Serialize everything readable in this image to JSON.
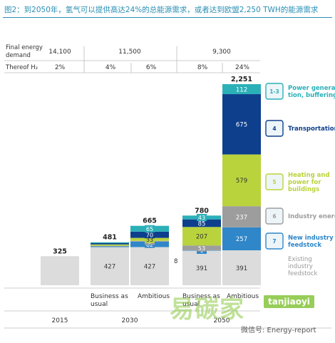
{
  "title": "图2：到2050年，氢气可以提供高达24%的总能源需求，或者达到欧盟2,250 TWH的能源需求",
  "chart_data": {
    "type": "bar",
    "stacked": true,
    "header_rows": [
      {
        "label": "Final energy demand",
        "values": [
          "14,100",
          "11,500",
          "9,300"
        ]
      },
      {
        "label": "Thereof H₂",
        "values": [
          "2%",
          "4%",
          "6%",
          "8%",
          "24%"
        ]
      }
    ],
    "bars": [
      {
        "category": "",
        "group": "2015",
        "total": "325",
        "segments": [
          {
            "name": "Existing industry feedstock",
            "value": 325,
            "label": ""
          }
        ]
      },
      {
        "category": "Business as usual",
        "group": "2030",
        "total": "481",
        "segments": [
          {
            "name": "Existing industry feedstock",
            "value": 427,
            "label": "427"
          },
          {
            "name": "New industry feedstock",
            "value": 10,
            "label": ""
          },
          {
            "name": "Industry energy",
            "value": 5,
            "label": ""
          },
          {
            "name": "Heating and power for buildings",
            "value": 15,
            "label": ""
          },
          {
            "name": "Transportation",
            "value": 14,
            "label": ""
          },
          {
            "name": "Power generation, buffering",
            "value": 10,
            "label": ""
          }
        ]
      },
      {
        "category": "Ambitious",
        "group": "2030",
        "total": "665",
        "segments": [
          {
            "name": "Existing industry feedstock",
            "value": 427,
            "label": "427"
          },
          {
            "name": "New industry feedstock",
            "value": 62,
            "label": "62"
          },
          {
            "name": "Industry energy",
            "value": 8,
            "label": "8"
          },
          {
            "name": "Heating and power for buildings",
            "value": 33,
            "label": "33"
          },
          {
            "name": "Transportation",
            "value": 70,
            "label": "70"
          },
          {
            "name": "Power generation, buffering",
            "value": 65,
            "label": "65"
          }
        ]
      },
      {
        "category": "Business as usual",
        "group": "2050",
        "total": "780",
        "segments": [
          {
            "name": "Existing industry feedstock",
            "value": 391,
            "label": "391"
          },
          {
            "name": "New industry feedstock",
            "value": 1,
            "label": "1"
          },
          {
            "name": "Industry energy",
            "value": 53,
            "label": "53"
          },
          {
            "name": "Heating and power for buildings",
            "value": 207,
            "label": "207"
          },
          {
            "name": "Transportation",
            "value": 85,
            "label": "85"
          },
          {
            "name": "Power generation, buffering",
            "value": 43,
            "label": "43"
          }
        ]
      },
      {
        "category": "Ambitious",
        "group": "2050",
        "total": "2,251",
        "segments": [
          {
            "name": "Existing industry feedstock",
            "value": 391,
            "label": "391"
          },
          {
            "name": "New industry feedstock",
            "value": 257,
            "label": "257"
          },
          {
            "name": "Industry energy",
            "value": 237,
            "label": "237"
          },
          {
            "name": "Heating and power for buildings",
            "value": 579,
            "label": "579"
          },
          {
            "name": "Transportation",
            "value": 675,
            "label": "675"
          },
          {
            "name": "Power generation, buffering",
            "value": 112,
            "label": "112"
          }
        ]
      }
    ],
    "groups": [
      "2015",
      "2030",
      "2050"
    ],
    "legend": [
      {
        "icon": "1-3",
        "label": "Power genera-\ntion, buffering",
        "color": "#2bb0b8"
      },
      {
        "icon": "4",
        "label": "Transportation",
        "color": "#0e3f8c"
      },
      {
        "icon": "5",
        "label": "Heating and\npower for\nbuildings",
        "color": "#b9d33c"
      },
      {
        "icon": "6",
        "label": "Industry energy",
        "color": "#9d9d9d"
      },
      {
        "icon": "7",
        "label": "New industry\nfeedstock",
        "color": "#2f86c9"
      },
      {
        "icon": "",
        "label": "Existing\nindustry\nfeedstock",
        "color": "#dcdcdc"
      }
    ],
    "legend_placement": "right",
    "grid": false
  },
  "watermark": {
    "cn": "易碳家",
    "en": "tanjiaoyi",
    "account": "微信号: Energy-report"
  }
}
